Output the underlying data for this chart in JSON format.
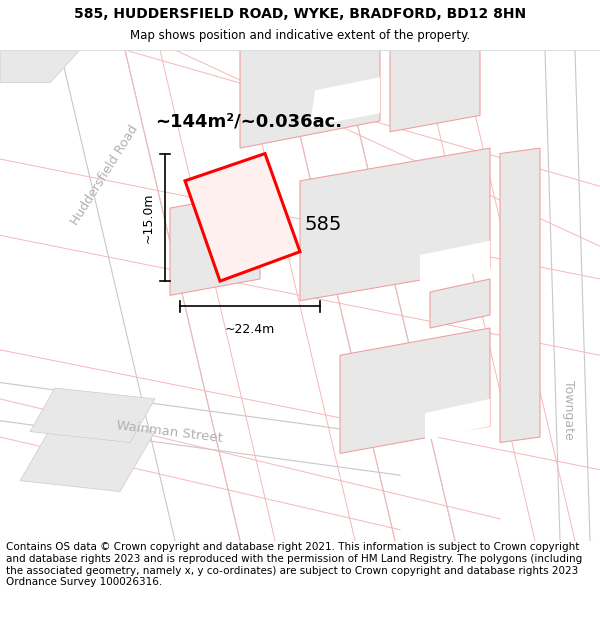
{
  "title_line1": "585, HUDDERSFIELD ROAD, WYKE, BRADFORD, BD12 8HN",
  "title_line2": "Map shows position and indicative extent of the property.",
  "footer_text": "Contains OS data © Crown copyright and database right 2021. This information is subject to Crown copyright and database rights 2023 and is reproduced with the permission of HM Land Registry. The polygons (including the associated geometry, namely x, y co-ordinates) are subject to Crown copyright and database rights 2023 Ordnance Survey 100026316.",
  "area_label": "~144m²/~0.036ac.",
  "width_label": "~22.4m",
  "height_label": "~15.0m",
  "plot_number": "585",
  "map_bg": "#ffffff",
  "plot_color": "#ff0000",
  "road_line_color": "#f5b8b8",
  "building_color": "#e8e8e8",
  "building_edge": "#f0a0a0",
  "street_color": "#b0b0b0",
  "street_label1": "Huddersfield Road",
  "street_label2": "Wainman Street",
  "street_label3": "Towngate",
  "title_fontsize": 10,
  "footer_fontsize": 7.5
}
